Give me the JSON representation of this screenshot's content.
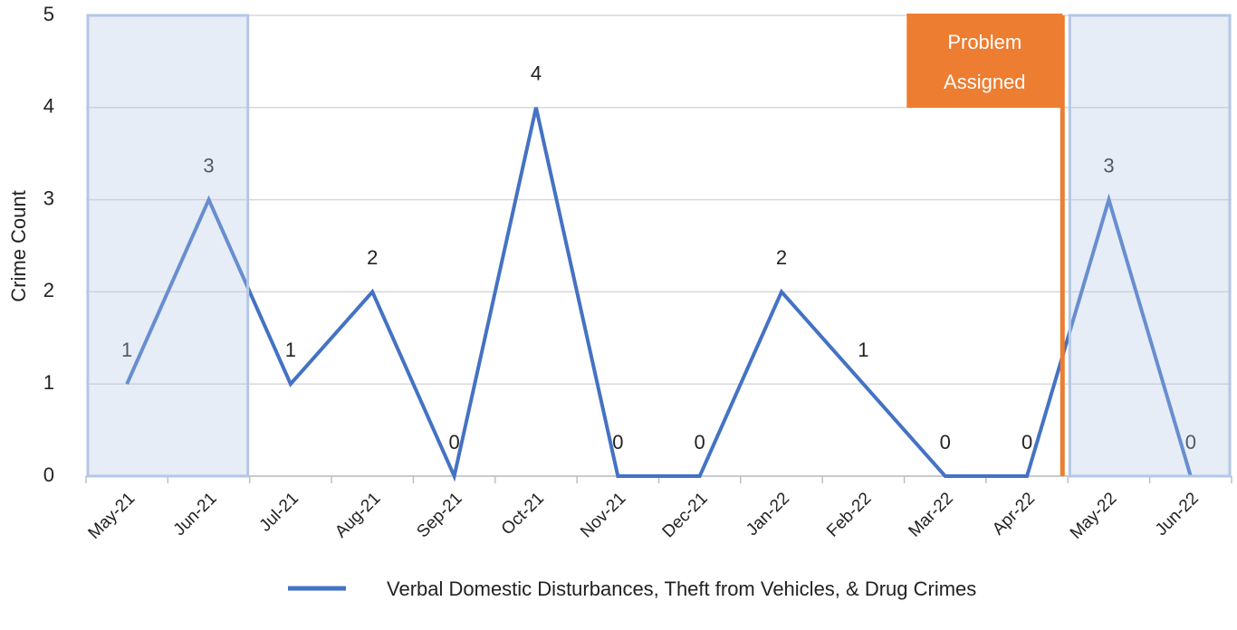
{
  "chart_data": {
    "type": "line",
    "y_label": "Crime Count",
    "categories": [
      "May-21",
      "Jun-21",
      "Jul-21",
      "Aug-21",
      "Sep-21",
      "Oct-21",
      "Nov-21",
      "Dec-21",
      "Jan-22",
      "Feb-22",
      "Mar-22",
      "Apr-22",
      "May-22",
      "Jun-22"
    ],
    "series": [
      {
        "name": "Verbal Domestic Disturbances, Theft from Vehicles, & Drug Crimes",
        "color": "#4472c4",
        "values": [
          1,
          3,
          1,
          2,
          0,
          4,
          0,
          0,
          2,
          1,
          0,
          0,
          3,
          0
        ]
      }
    ],
    "ylim": [
      0,
      5
    ],
    "yticks": [
      0,
      1,
      2,
      3,
      4,
      5
    ],
    "grid": true,
    "annotation": [
      "Problem",
      "Assigned"
    ],
    "annotation_color": "#ed7d31"
  }
}
